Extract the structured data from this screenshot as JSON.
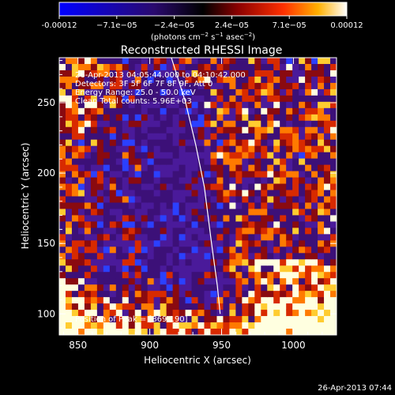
{
  "colorbar": {
    "ticks": [
      "-0.00012",
      "−7.1e−05",
      "−2.4e−05",
      "2.4e−05",
      "7.1e−05",
      "0.00012"
    ],
    "units_prefix": "(photons cm",
    "units_exp1": "−2",
    " units_s": " s",
    "units_exp2": "−1",
    "units_asec": " asec",
    "units_exp3": "−2",
    "units_suffix": ")"
  },
  "chart_data": {
    "type": "heatmap",
    "title": "Reconstructed RHESSI Image",
    "xlabel": "Heliocentric X (arcsec)",
    "ylabel": "Heliocentric Y (arcsec)",
    "xlim": [
      837,
      1030
    ],
    "ylim": [
      85,
      282
    ],
    "x_ticks": [
      850,
      900,
      950,
      1000
    ],
    "y_ticks": [
      100,
      150,
      200,
      250
    ],
    "x_tick_labels": [
      "850",
      "900",
      "950",
      "1000"
    ],
    "y_tick_labels": [
      "100",
      "150",
      "200",
      "250"
    ],
    "colorbar_range": [
      -0.00012,
      0.00012
    ],
    "limb_curve": [
      [
        915,
        282
      ],
      [
        925,
        250
      ],
      [
        932,
        220
      ],
      [
        938,
        190
      ],
      [
        943,
        150
      ],
      [
        947,
        120
      ],
      [
        949,
        100
      ]
    ],
    "annotations": [
      "26-Apr-2013 04:05:44.000 to 04:10:42.000",
      "Detectors: 3F 5F 6F 7F 8F 9F, Att 0",
      "Energy Range: 25.0 - 50.0 keV",
      "Clean     Total counts: 5.96E+03"
    ],
    "peak_label": "Position of Peak = [869,190]"
  },
  "footer": {
    "timestamp": "26-Apr-2013 07:44"
  }
}
